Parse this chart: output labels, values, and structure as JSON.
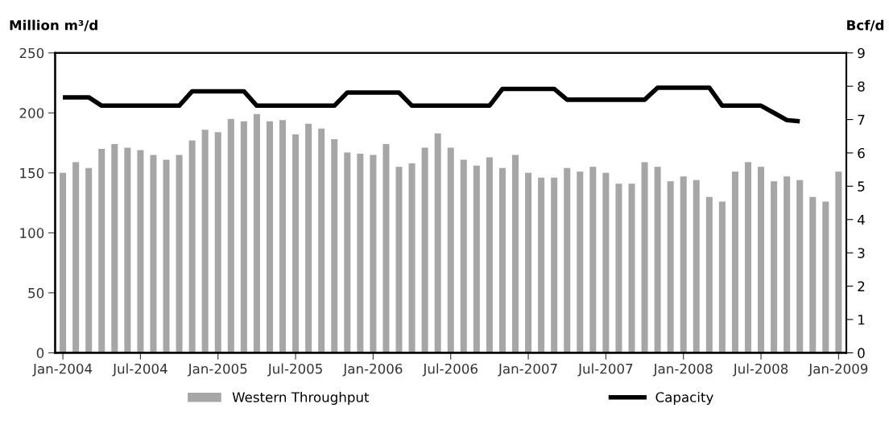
{
  "chart_data": {
    "type": "bar",
    "ylabel": "Million m³/d",
    "y2label": "Bcf/d",
    "categories": [
      "Jan-2004",
      null,
      null,
      null,
      null,
      null,
      "Jul-2004",
      null,
      null,
      null,
      null,
      null,
      "Jan-2005",
      null,
      null,
      null,
      null,
      null,
      "Jul-2005",
      null,
      null,
      null,
      null,
      null,
      "Jan-2006",
      null,
      null,
      null,
      null,
      null,
      "Jul-2006",
      null,
      null,
      null,
      null,
      null,
      "Jan-2007",
      null,
      null,
      null,
      null,
      null,
      "Jul-2007",
      null,
      null,
      null,
      null,
      null,
      "Jan-2008",
      null,
      null,
      null,
      null,
      null,
      "Jul-2008",
      null,
      null,
      null,
      null,
      null,
      "Jan-2009"
    ],
    "series": [
      {
        "name": "Western Throughput",
        "color": "#a6a6a6",
        "values": [
          150,
          159,
          154,
          170,
          174,
          171,
          169,
          165,
          161,
          165,
          177,
          186,
          184,
          195,
          193,
          199,
          193,
          194,
          182,
          191,
          187,
          178,
          167,
          166,
          165,
          174,
          155,
          158,
          171,
          183,
          171,
          161,
          156,
          163,
          154,
          165,
          150,
          146,
          146,
          154,
          151,
          155,
          150,
          141,
          141,
          159,
          155,
          143,
          147,
          144,
          130,
          126,
          151,
          159,
          155,
          143,
          147,
          144,
          130,
          126,
          151
        ]
      },
      {
        "name": "Capacity",
        "type": "line",
        "color": "#000000",
        "values": [
          213,
          213,
          213,
          206,
          206,
          206,
          206,
          206,
          206,
          206,
          218,
          218,
          218,
          218,
          218,
          206,
          206,
          206,
          206,
          206,
          206,
          206,
          217,
          217,
          217,
          217,
          217,
          206,
          206,
          206,
          206,
          206,
          206,
          206,
          220,
          220,
          220,
          220,
          220,
          211,
          211,
          211,
          211,
          211,
          211,
          211,
          221,
          221,
          221,
          221,
          221,
          206,
          206,
          206,
          206,
          200,
          194,
          193,
          null,
          null,
          null
        ]
      }
    ],
    "ylim": [
      0,
      250
    ],
    "yticks": [
      0,
      50,
      100,
      150,
      200,
      250
    ],
    "y2lim": [
      0,
      9
    ],
    "y2ticks": [
      0,
      1,
      2,
      3,
      4,
      5,
      6,
      7,
      8,
      9
    ],
    "grid": false,
    "legend": "bottom"
  }
}
